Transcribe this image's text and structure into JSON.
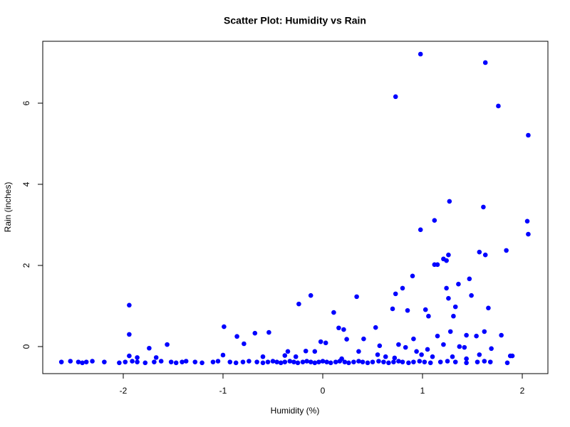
{
  "chart_data": {
    "type": "scatter",
    "title": "Scatter Plot: Humidity vs Rain",
    "x_label": "Humidity (%)",
    "y_label": "Rain (inches)",
    "color": "#0000ff",
    "xlim": [
      -2.807,
      2.257
    ],
    "ylim": [
      -0.667,
      7.526
    ],
    "xticks": [
      -2,
      -1,
      0,
      1,
      2
    ],
    "yticks": [
      0,
      2,
      4,
      6
    ],
    "x": [
      0.98,
      1.63,
      0.73,
      1.76,
      2.06,
      1.27,
      1.61,
      2.05,
      2.06,
      1.12,
      0.98,
      1.57,
      1.63,
      1.84,
      1.26,
      1.21,
      1.24,
      1.12,
      1.15,
      0.9,
      1.47,
      1.36,
      0.8,
      1.24,
      1.49,
      0.73,
      1.26,
      -0.12,
      0.34,
      -0.24,
      -1.94,
      1.33,
      0.7,
      1.03,
      1.66,
      0.85,
      0.11,
      1.31,
      1.06,
      -0.99,
      0.53,
      0.16,
      0.21,
      -0.54,
      -0.68,
      1.28,
      1.62,
      -1.94,
      -0.86,
      1.15,
      1.44,
      1.54,
      1.79,
      0.91,
      0.41,
      0.24,
      -1.56,
      -0.79,
      -0.02,
      0.03,
      -1.74,
      1.21,
      1.37,
      1.42,
      0.57,
      0.76,
      1.69,
      0.83,
      0.94,
      -0.08,
      0.36,
      -0.17,
      -0.35,
      -1.94,
      -1.0,
      1.88,
      1.05,
      -1.67,
      -1.86,
      -0.38,
      -0.27,
      0.55,
      0.99,
      1.1,
      1.3,
      1.44,
      1.57,
      1.9,
      0.63,
      0.19,
      -0.6,
      0.72,
      -2.62,
      -2.53,
      -2.45,
      -2.41,
      -2.37,
      -2.31,
      -2.19,
      -2.04,
      -1.98,
      -1.91,
      -1.86,
      -1.78,
      -1.69,
      -1.62,
      -1.52,
      -1.47,
      -1.41,
      -1.37,
      -1.28,
      -1.21,
      -1.1,
      -1.05,
      -0.93,
      -0.87,
      -0.8,
      -0.74,
      -0.66,
      -0.6,
      -0.55,
      -0.5,
      -0.46,
      -0.42,
      -0.38,
      -0.33,
      -0.29,
      -0.25,
      -0.2,
      -0.16,
      -0.12,
      -0.08,
      -0.04,
      0.0,
      0.04,
      0.08,
      0.13,
      0.17,
      0.22,
      0.26,
      0.31,
      0.36,
      0.4,
      0.45,
      0.5,
      0.56,
      0.61,
      0.66,
      0.71,
      0.76,
      0.8,
      0.86,
      0.91,
      0.97,
      1.02,
      1.08,
      1.18,
      1.25,
      1.33,
      1.44,
      1.55,
      1.62,
      1.68,
      1.85
    ],
    "y": [
      7.21,
      7.0,
      6.16,
      5.93,
      5.21,
      3.58,
      3.44,
      3.09,
      2.77,
      3.11,
      2.88,
      2.33,
      2.26,
      2.37,
      2.26,
      2.16,
      2.12,
      2.02,
      2.02,
      1.74,
      1.67,
      1.54,
      1.44,
      1.44,
      1.26,
      1.3,
      1.19,
      1.26,
      1.23,
      1.05,
      1.02,
      0.98,
      0.93,
      0.91,
      0.95,
      0.89,
      0.84,
      0.75,
      0.75,
      0.49,
      0.47,
      0.46,
      0.42,
      0.35,
      0.33,
      0.37,
      0.37,
      0.3,
      0.25,
      0.26,
      0.28,
      0.26,
      0.28,
      0.19,
      0.19,
      0.18,
      0.05,
      0.07,
      0.12,
      0.09,
      -0.04,
      0.05,
      0,
      -0.02,
      0.02,
      0.05,
      -0.05,
      -0.02,
      -0.12,
      -0.12,
      -0.12,
      -0.11,
      -0.12,
      -0.23,
      -0.21,
      -0.23,
      -0.07,
      -0.27,
      -0.27,
      -0.22,
      -0.25,
      -0.2,
      -0.2,
      -0.25,
      -0.25,
      -0.3,
      -0.2,
      -0.23,
      -0.25,
      -0.3,
      -0.25,
      -0.28,
      -0.38,
      -0.36,
      -0.38,
      -0.4,
      -0.38,
      -0.36,
      -0.38,
      -0.4,
      -0.38,
      -0.36,
      -0.38,
      -0.4,
      -0.38,
      -0.36,
      -0.38,
      -0.4,
      -0.38,
      -0.36,
      -0.38,
      -0.4,
      -0.38,
      -0.36,
      -0.38,
      -0.4,
      -0.38,
      -0.36,
      -0.38,
      -0.4,
      -0.38,
      -0.36,
      -0.38,
      -0.4,
      -0.38,
      -0.36,
      -0.38,
      -0.4,
      -0.38,
      -0.36,
      -0.38,
      -0.4,
      -0.38,
      -0.36,
      -0.38,
      -0.4,
      -0.38,
      -0.36,
      -0.38,
      -0.4,
      -0.38,
      -0.36,
      -0.38,
      -0.4,
      -0.38,
      -0.36,
      -0.38,
      -0.4,
      -0.38,
      -0.36,
      -0.38,
      -0.4,
      -0.38,
      -0.36,
      -0.38,
      -0.4,
      -0.38,
      -0.36,
      -0.38,
      -0.4,
      -0.38,
      -0.36,
      -0.38,
      -0.4
    ]
  }
}
